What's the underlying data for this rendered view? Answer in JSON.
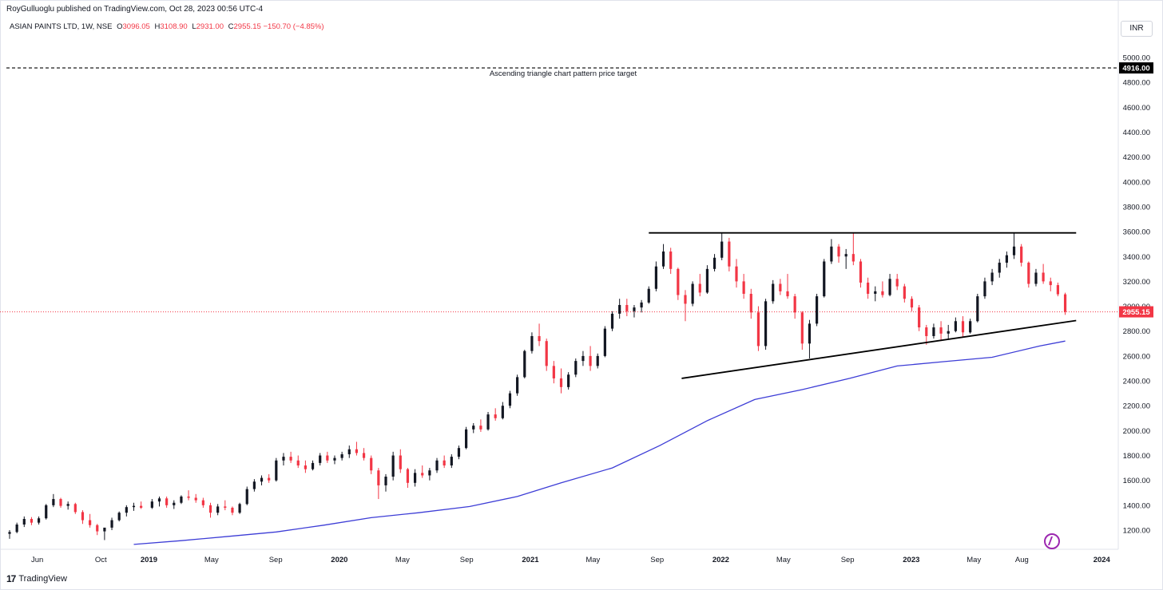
{
  "header": {
    "publisher": "RoyGulluoglu published on TradingView.com, Oct 28, 2023 00:56 UTC-4",
    "symbol": "ASIAN PAINTS LTD, 1W, NSE",
    "open_label": "O",
    "open": "3096.05",
    "high_label": "H",
    "high": "3108.90",
    "low_label": "L",
    "low": "2931.00",
    "close_label": "C",
    "close": "2955.15",
    "change": "−150.70 (−4.85%)",
    "currency": "INR"
  },
  "footer": {
    "brand": "TradingView",
    "logo_mark": "17"
  },
  "colors": {
    "up": "#131722",
    "down": "#f23645",
    "ma": "#3d3dd6",
    "accent_line": "#000000",
    "price_line": "#f23645"
  },
  "icons": [
    "replay-icon",
    "tradingview-logo-icon"
  ],
  "chart_data": {
    "type": "candlestick",
    "ylim": [
      1050,
      5150
    ],
    "y_ticks": [
      1200,
      1400,
      1600,
      1800,
      2000,
      2200,
      2400,
      2600,
      2800,
      3000,
      3200,
      3400,
      3600,
      3800,
      4000,
      4200,
      4400,
      4600,
      4800,
      5000
    ],
    "y_tick_labels": [
      "1200.00",
      "1400.00",
      "1600.00",
      "1800.00",
      "2000.00",
      "2200.00",
      "2400.00",
      "2600.00",
      "2800.00",
      "3000.00",
      "3200.00",
      "3400.00",
      "3600.00",
      "3800.00",
      "4000.00",
      "4200.00",
      "4400.00",
      "4600.00",
      "4800.00",
      "5000.00"
    ],
    "x_range": [
      "2018-04-09",
      "2024-01-22"
    ],
    "x_ticks": [
      {
        "label": "Jun",
        "date": "2018-06-01",
        "year": false
      },
      {
        "label": "Oct",
        "date": "2018-10-01",
        "year": false
      },
      {
        "label": "2019",
        "date": "2019-01-01",
        "year": true
      },
      {
        "label": "May",
        "date": "2019-05-01",
        "year": false
      },
      {
        "label": "Sep",
        "date": "2019-09-01",
        "year": false
      },
      {
        "label": "2020",
        "date": "2020-01-01",
        "year": true
      },
      {
        "label": "May",
        "date": "2020-05-01",
        "year": false
      },
      {
        "label": "Sep",
        "date": "2020-09-01",
        "year": false
      },
      {
        "label": "2021",
        "date": "2021-01-01",
        "year": true
      },
      {
        "label": "May",
        "date": "2021-05-01",
        "year": false
      },
      {
        "label": "Sep",
        "date": "2021-09-01",
        "year": false
      },
      {
        "label": "2022",
        "date": "2022-01-01",
        "year": true
      },
      {
        "label": "May",
        "date": "2022-05-01",
        "year": false
      },
      {
        "label": "Sep",
        "date": "2022-09-01",
        "year": false
      },
      {
        "label": "2023",
        "date": "2023-01-01",
        "year": true
      },
      {
        "label": "May",
        "date": "2023-05-01",
        "year": false
      },
      {
        "label": "Aug",
        "date": "2023-08-01",
        "year": false
      },
      {
        "label": "2024",
        "date": "2024-01-01",
        "year": true
      }
    ],
    "target_line": {
      "value": 4916.0,
      "label": "4916.00",
      "annotation": "Ascending triangle chart pattern price target"
    },
    "last_price": {
      "value": 2955.15,
      "label": "2955.15"
    },
    "resistance_line": {
      "from": [
        "2021-08-16",
        3590
      ],
      "to": [
        "2023-11-13",
        3590
      ]
    },
    "support_line": {
      "from": [
        "2021-10-18",
        2420
      ],
      "to": [
        "2023-11-13",
        2885
      ]
    },
    "moving_average": {
      "dates": [
        "2018-12-03",
        "2019-03-04",
        "2019-06-03",
        "2019-09-02",
        "2019-12-02",
        "2020-03-02",
        "2020-06-01",
        "2020-09-07",
        "2020-12-07",
        "2021-03-01",
        "2021-06-07",
        "2021-09-06",
        "2021-12-06",
        "2022-03-07",
        "2022-06-06",
        "2022-09-05",
        "2022-12-05",
        "2023-03-06",
        "2023-06-05",
        "2023-09-04",
        "2023-10-23"
      ],
      "values": [
        1085,
        1115,
        1150,
        1185,
        1240,
        1300,
        1340,
        1390,
        1470,
        1580,
        1700,
        1880,
        2080,
        2250,
        2330,
        2420,
        2520,
        2555,
        2590,
        2680,
        2720
      ]
    },
    "candles": [
      [
        "2018-04-09",
        1170,
        1200,
        1130,
        1185
      ],
      [
        "2018-04-23",
        1185,
        1260,
        1175,
        1245
      ],
      [
        "2018-05-07",
        1245,
        1310,
        1225,
        1290
      ],
      [
        "2018-05-21",
        1290,
        1305,
        1240,
        1260
      ],
      [
        "2018-06-04",
        1260,
        1310,
        1245,
        1295
      ],
      [
        "2018-06-18",
        1295,
        1410,
        1285,
        1400
      ],
      [
        "2018-07-02",
        1400,
        1490,
        1385,
        1450
      ],
      [
        "2018-07-16",
        1450,
        1460,
        1380,
        1395
      ],
      [
        "2018-07-30",
        1395,
        1430,
        1365,
        1410
      ],
      [
        "2018-08-13",
        1410,
        1420,
        1330,
        1345
      ],
      [
        "2018-08-27",
        1345,
        1360,
        1250,
        1280
      ],
      [
        "2018-09-10",
        1280,
        1330,
        1220,
        1240
      ],
      [
        "2018-09-24",
        1240,
        1250,
        1160,
        1190
      ],
      [
        "2018-10-08",
        1190,
        1210,
        1120,
        1220
      ],
      [
        "2018-10-22",
        1220,
        1300,
        1200,
        1280
      ],
      [
        "2018-11-05",
        1280,
        1350,
        1270,
        1340
      ],
      [
        "2018-11-19",
        1340,
        1400,
        1310,
        1385
      ],
      [
        "2018-12-03",
        1385,
        1420,
        1355,
        1395
      ],
      [
        "2018-12-17",
        1395,
        1430,
        1370,
        1380
      ],
      [
        "2019-01-07",
        1380,
        1450,
        1370,
        1430
      ],
      [
        "2019-01-21",
        1430,
        1470,
        1390,
        1455
      ],
      [
        "2019-02-04",
        1455,
        1470,
        1380,
        1400
      ],
      [
        "2019-02-18",
        1400,
        1440,
        1370,
        1420
      ],
      [
        "2019-03-04",
        1420,
        1480,
        1410,
        1470
      ],
      [
        "2019-03-18",
        1470,
        1520,
        1440,
        1460
      ],
      [
        "2019-04-01",
        1460,
        1490,
        1420,
        1440
      ],
      [
        "2019-04-15",
        1440,
        1460,
        1380,
        1400
      ],
      [
        "2019-04-29",
        1400,
        1420,
        1300,
        1340
      ],
      [
        "2019-05-13",
        1340,
        1410,
        1320,
        1390
      ],
      [
        "2019-05-27",
        1390,
        1440,
        1360,
        1380
      ],
      [
        "2019-06-10",
        1380,
        1390,
        1320,
        1340
      ],
      [
        "2019-06-24",
        1340,
        1420,
        1330,
        1410
      ],
      [
        "2019-07-08",
        1410,
        1550,
        1400,
        1530
      ],
      [
        "2019-07-22",
        1530,
        1610,
        1510,
        1590
      ],
      [
        "2019-08-05",
        1590,
        1640,
        1560,
        1620
      ],
      [
        "2019-08-19",
        1620,
        1650,
        1580,
        1600
      ],
      [
        "2019-09-02",
        1600,
        1780,
        1590,
        1760
      ],
      [
        "2019-09-16",
        1760,
        1820,
        1720,
        1790
      ],
      [
        "2019-09-30",
        1790,
        1830,
        1740,
        1760
      ],
      [
        "2019-10-14",
        1760,
        1800,
        1700,
        1720
      ],
      [
        "2019-10-28",
        1720,
        1760,
        1660,
        1690
      ],
      [
        "2019-11-11",
        1690,
        1760,
        1680,
        1740
      ],
      [
        "2019-11-25",
        1740,
        1820,
        1720,
        1800
      ],
      [
        "2019-12-09",
        1800,
        1830,
        1740,
        1760
      ],
      [
        "2019-12-23",
        1760,
        1800,
        1730,
        1780
      ],
      [
        "2020-01-06",
        1780,
        1830,
        1760,
        1810
      ],
      [
        "2020-01-20",
        1810,
        1880,
        1780,
        1850
      ],
      [
        "2020-02-03",
        1850,
        1910,
        1800,
        1820
      ],
      [
        "2020-02-17",
        1820,
        1860,
        1760,
        1780
      ],
      [
        "2020-03-02",
        1780,
        1800,
        1650,
        1680
      ],
      [
        "2020-03-16",
        1680,
        1700,
        1450,
        1560
      ],
      [
        "2020-03-30",
        1560,
        1650,
        1510,
        1630
      ],
      [
        "2020-04-13",
        1630,
        1830,
        1600,
        1800
      ],
      [
        "2020-04-27",
        1800,
        1850,
        1660,
        1690
      ],
      [
        "2020-05-11",
        1690,
        1700,
        1540,
        1580
      ],
      [
        "2020-05-25",
        1580,
        1690,
        1550,
        1660
      ],
      [
        "2020-06-08",
        1660,
        1720,
        1620,
        1640
      ],
      [
        "2020-06-22",
        1640,
        1700,
        1600,
        1680
      ],
      [
        "2020-07-06",
        1680,
        1780,
        1660,
        1760
      ],
      [
        "2020-07-20",
        1760,
        1800,
        1700,
        1720
      ],
      [
        "2020-08-03",
        1720,
        1810,
        1700,
        1790
      ],
      [
        "2020-08-17",
        1790,
        1880,
        1770,
        1860
      ],
      [
        "2020-08-31",
        1860,
        2030,
        1850,
        2010
      ],
      [
        "2020-09-14",
        2010,
        2060,
        1980,
        2040
      ],
      [
        "2020-09-28",
        2040,
        2090,
        1990,
        2010
      ],
      [
        "2020-10-12",
        2010,
        2150,
        2000,
        2130
      ],
      [
        "2020-10-26",
        2130,
        2180,
        2080,
        2100
      ],
      [
        "2020-11-09",
        2100,
        2230,
        2090,
        2200
      ],
      [
        "2020-11-23",
        2200,
        2320,
        2180,
        2300
      ],
      [
        "2020-12-07",
        2300,
        2450,
        2280,
        2430
      ],
      [
        "2020-12-21",
        2430,
        2650,
        2420,
        2640
      ],
      [
        "2021-01-04",
        2640,
        2790,
        2620,
        2760
      ],
      [
        "2021-01-18",
        2760,
        2860,
        2680,
        2720
      ],
      [
        "2021-02-01",
        2720,
        2740,
        2480,
        2520
      ],
      [
        "2021-02-15",
        2520,
        2560,
        2380,
        2420
      ],
      [
        "2021-03-01",
        2420,
        2500,
        2300,
        2350
      ],
      [
        "2021-03-15",
        2350,
        2470,
        2330,
        2450
      ],
      [
        "2021-03-29",
        2450,
        2580,
        2430,
        2560
      ],
      [
        "2021-04-12",
        2560,
        2640,
        2520,
        2600
      ],
      [
        "2021-04-26",
        2600,
        2680,
        2480,
        2520
      ],
      [
        "2021-05-10",
        2520,
        2620,
        2500,
        2600
      ],
      [
        "2021-05-24",
        2600,
        2840,
        2590,
        2820
      ],
      [
        "2021-06-07",
        2820,
        2960,
        2800,
        2940
      ],
      [
        "2021-06-21",
        2940,
        3060,
        2900,
        3010
      ],
      [
        "2021-07-05",
        3010,
        3060,
        2920,
        2960
      ],
      [
        "2021-07-19",
        2960,
        3010,
        2910,
        2990
      ],
      [
        "2021-08-02",
        2990,
        3050,
        2950,
        3030
      ],
      [
        "2021-08-16",
        3030,
        3160,
        3020,
        3140
      ],
      [
        "2021-08-30",
        3140,
        3360,
        3120,
        3320
      ],
      [
        "2021-09-13",
        3320,
        3500,
        3300,
        3440
      ],
      [
        "2021-09-27",
        3440,
        3470,
        3260,
        3300
      ],
      [
        "2021-10-11",
        3300,
        3310,
        3050,
        3090
      ],
      [
        "2021-10-25",
        3090,
        3130,
        2880,
        3020
      ],
      [
        "2021-11-08",
        3020,
        3200,
        3000,
        3180
      ],
      [
        "2021-11-22",
        3180,
        3260,
        3080,
        3110
      ],
      [
        "2021-12-06",
        3110,
        3330,
        3100,
        3300
      ],
      [
        "2021-12-20",
        3300,
        3420,
        3280,
        3390
      ],
      [
        "2022-01-03",
        3390,
        3590,
        3370,
        3520
      ],
      [
        "2022-01-17",
        3520,
        3550,
        3280,
        3320
      ],
      [
        "2022-01-31",
        3320,
        3380,
        3150,
        3200
      ],
      [
        "2022-02-14",
        3200,
        3260,
        3060,
        3100
      ],
      [
        "2022-02-28",
        3100,
        3140,
        2900,
        2950
      ],
      [
        "2022-03-14",
        2950,
        3000,
        2640,
        2680
      ],
      [
        "2022-03-28",
        2680,
        3060,
        2650,
        3040
      ],
      [
        "2022-04-11",
        3040,
        3210,
        3020,
        3180
      ],
      [
        "2022-04-25",
        3180,
        3220,
        3090,
        3120
      ],
      [
        "2022-05-09",
        3120,
        3260,
        3060,
        3080
      ],
      [
        "2022-05-23",
        3080,
        3100,
        2900,
        2950
      ],
      [
        "2022-06-06",
        2950,
        2960,
        2650,
        2700
      ],
      [
        "2022-06-20",
        2700,
        2890,
        2580,
        2860
      ],
      [
        "2022-07-04",
        2860,
        3100,
        2840,
        3080
      ],
      [
        "2022-07-18",
        3080,
        3380,
        3070,
        3360
      ],
      [
        "2022-08-01",
        3360,
        3540,
        3340,
        3480
      ],
      [
        "2022-08-15",
        3480,
        3500,
        3350,
        3400
      ],
      [
        "2022-08-29",
        3400,
        3460,
        3300,
        3420
      ],
      [
        "2022-09-12",
        3420,
        3590,
        3330,
        3360
      ],
      [
        "2022-09-26",
        3360,
        3380,
        3150,
        3190
      ],
      [
        "2022-10-10",
        3190,
        3230,
        3060,
        3100
      ],
      [
        "2022-10-24",
        3100,
        3160,
        3040,
        3120
      ],
      [
        "2022-11-07",
        3120,
        3200,
        3070,
        3090
      ],
      [
        "2022-11-21",
        3090,
        3260,
        3080,
        3220
      ],
      [
        "2022-12-05",
        3220,
        3260,
        3130,
        3160
      ],
      [
        "2022-12-19",
        3160,
        3180,
        3030,
        3060
      ],
      [
        "2023-01-02",
        3060,
        3080,
        2960,
        2990
      ],
      [
        "2023-01-16",
        2990,
        3010,
        2800,
        2830
      ],
      [
        "2023-01-30",
        2830,
        2850,
        2690,
        2760
      ],
      [
        "2023-02-13",
        2760,
        2860,
        2740,
        2830
      ],
      [
        "2023-02-27",
        2830,
        2880,
        2720,
        2780
      ],
      [
        "2023-03-13",
        2780,
        2850,
        2730,
        2800
      ],
      [
        "2023-03-27",
        2800,
        2910,
        2790,
        2880
      ],
      [
        "2023-04-10",
        2880,
        2920,
        2750,
        2790
      ],
      [
        "2023-04-24",
        2790,
        2900,
        2780,
        2880
      ],
      [
        "2023-05-08",
        2880,
        3100,
        2870,
        3080
      ],
      [
        "2023-05-22",
        3080,
        3230,
        3060,
        3200
      ],
      [
        "2023-06-05",
        3200,
        3300,
        3170,
        3270
      ],
      [
        "2023-06-19",
        3270,
        3380,
        3230,
        3350
      ],
      [
        "2023-07-03",
        3350,
        3440,
        3310,
        3410
      ],
      [
        "2023-07-17",
        3410,
        3590,
        3380,
        3480
      ],
      [
        "2023-07-31",
        3480,
        3500,
        3320,
        3350
      ],
      [
        "2023-08-14",
        3350,
        3360,
        3150,
        3180
      ],
      [
        "2023-08-28",
        3180,
        3300,
        3160,
        3270
      ],
      [
        "2023-09-11",
        3270,
        3340,
        3180,
        3200
      ],
      [
        "2023-09-25",
        3200,
        3230,
        3120,
        3170
      ],
      [
        "2023-10-09",
        3170,
        3190,
        3080,
        3096.05
      ],
      [
        "2023-10-23",
        3096.05,
        3108.9,
        2931.0,
        2955.15
      ]
    ]
  }
}
